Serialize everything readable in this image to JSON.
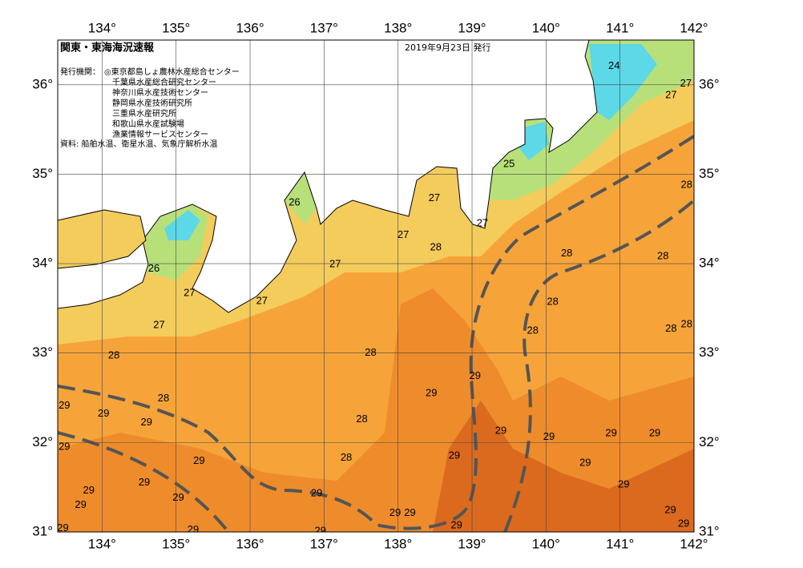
{
  "map": {
    "title": "関東・東海海況速報",
    "date": "2019年9月23日 発行",
    "issuers_label": "発行機関：",
    "issuers": [
      "◎東京都島しょ農林水産総合センター",
      "千葉県水産総合研究センター",
      "神奈川県水産技術センター",
      "静岡県水産技術研究所",
      "三重県水産研究所",
      "和歌山県水産試験場",
      "漁業情報サービスセンター"
    ],
    "source": "資料: 船舶水温、衛星水温、気象庁解析水温",
    "lonlim": [
      133.4,
      142
    ],
    "latlim": [
      31,
      36.5
    ],
    "lon_ticks": [
      {
        "value": 134,
        "label": "134°"
      },
      {
        "value": 135,
        "label": "135°"
      },
      {
        "value": 136,
        "label": "136°"
      },
      {
        "value": 137,
        "label": "137°"
      },
      {
        "value": 138,
        "label": "138°"
      },
      {
        "value": 139,
        "label": "139°"
      },
      {
        "value": 140,
        "label": "140°"
      },
      {
        "value": 141,
        "label": "141°"
      },
      {
        "value": 142,
        "label": "142°"
      }
    ],
    "lat_ticks": [
      {
        "value": 31,
        "label": "31°"
      },
      {
        "value": 32,
        "label": "32°"
      },
      {
        "value": 33,
        "label": "33°"
      },
      {
        "value": 34,
        "label": "34°"
      },
      {
        "value": 35,
        "label": "35°"
      },
      {
        "value": 36,
        "label": "36°"
      }
    ],
    "contour_labels": [
      {
        "text": "24",
        "lon": 140.92,
        "lat": 36.21
      },
      {
        "text": "27",
        "lon": 141.89,
        "lat": 36.01
      },
      {
        "text": "27",
        "lon": 141.69,
        "lat": 35.88
      },
      {
        "text": "25",
        "lon": 139.5,
        "lat": 35.11
      },
      {
        "text": "28",
        "lon": 141.9,
        "lat": 34.88
      },
      {
        "text": "26",
        "lon": 136.6,
        "lat": 34.68
      },
      {
        "text": "27",
        "lon": 138.49,
        "lat": 34.73
      },
      {
        "text": "27",
        "lon": 139.14,
        "lat": 34.45
      },
      {
        "text": "27",
        "lon": 138.07,
        "lat": 34.32
      },
      {
        "text": "28",
        "lon": 138.51,
        "lat": 34.18
      },
      {
        "text": "28",
        "lon": 140.28,
        "lat": 34.11
      },
      {
        "text": "28",
        "lon": 141.58,
        "lat": 34.08
      },
      {
        "text": "27",
        "lon": 137.15,
        "lat": 33.99
      },
      {
        "text": "26",
        "lon": 134.7,
        "lat": 33.94
      },
      {
        "text": "27",
        "lon": 135.18,
        "lat": 33.67
      },
      {
        "text": "27",
        "lon": 136.16,
        "lat": 33.58
      },
      {
        "text": "28",
        "lon": 140.09,
        "lat": 33.57
      },
      {
        "text": "27",
        "lon": 134.77,
        "lat": 33.31
      },
      {
        "text": "28",
        "lon": 139.82,
        "lat": 33.25
      },
      {
        "text": "28",
        "lon": 141.69,
        "lat": 33.27
      },
      {
        "text": "28",
        "lon": 141.9,
        "lat": 33.32
      },
      {
        "text": "28",
        "lon": 134.16,
        "lat": 32.97
      },
      {
        "text": "28",
        "lon": 137.63,
        "lat": 33.0
      },
      {
        "text": "29",
        "lon": 139.04,
        "lat": 32.74
      },
      {
        "text": "29",
        "lon": 138.45,
        "lat": 32.55
      },
      {
        "text": "28",
        "lon": 134.83,
        "lat": 32.49
      },
      {
        "text": "29",
        "lon": 133.49,
        "lat": 32.41
      },
      {
        "text": "29",
        "lon": 134.02,
        "lat": 32.32
      },
      {
        "text": "29",
        "lon": 134.6,
        "lat": 32.22
      },
      {
        "text": "28",
        "lon": 137.51,
        "lat": 32.26
      },
      {
        "text": "29",
        "lon": 139.39,
        "lat": 32.13
      },
      {
        "text": "29",
        "lon": 140.04,
        "lat": 32.06
      },
      {
        "text": "29",
        "lon": 140.88,
        "lat": 32.1
      },
      {
        "text": "29",
        "lon": 141.47,
        "lat": 32.1
      },
      {
        "text": "29",
        "lon": 133.49,
        "lat": 31.95
      },
      {
        "text": "28",
        "lon": 137.3,
        "lat": 31.83
      },
      {
        "text": "29",
        "lon": 138.76,
        "lat": 31.85
      },
      {
        "text": "29",
        "lon": 135.31,
        "lat": 31.79
      },
      {
        "text": "29",
        "lon": 140.53,
        "lat": 31.77
      },
      {
        "text": "29",
        "lon": 134.57,
        "lat": 31.55
      },
      {
        "text": "29",
        "lon": 141.05,
        "lat": 31.53
      },
      {
        "text": "29",
        "lon": 133.82,
        "lat": 31.46
      },
      {
        "text": "29",
        "lon": 135.03,
        "lat": 31.38
      },
      {
        "text": "29",
        "lon": 136.9,
        "lat": 31.43
      },
      {
        "text": "29",
        "lon": 133.71,
        "lat": 31.3
      },
      {
        "text": "29",
        "lon": 137.96,
        "lat": 31.21
      },
      {
        "text": "29",
        "lon": 138.16,
        "lat": 31.21
      },
      {
        "text": "29",
        "lon": 141.68,
        "lat": 31.24
      },
      {
        "text": "29",
        "lon": 138.79,
        "lat": 31.07
      },
      {
        "text": "29",
        "lon": 141.86,
        "lat": 31.09
      },
      {
        "text": "29",
        "lon": 133.47,
        "lat": 31.04
      },
      {
        "text": "29",
        "lon": 135.23,
        "lat": 31.02
      },
      {
        "text": "29",
        "lon": 136.95,
        "lat": 31.01
      }
    ]
  }
}
